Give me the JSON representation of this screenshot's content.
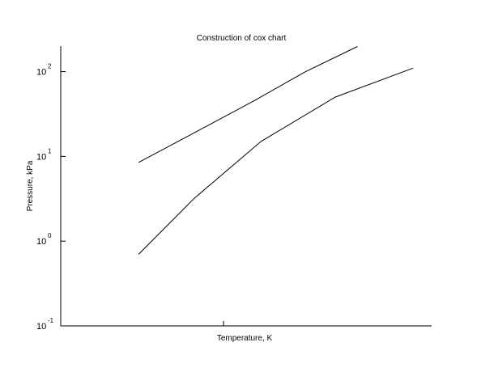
{
  "chart_data": {
    "type": "line",
    "title": "Construction of cox chart",
    "xlabel": "Temperature, K",
    "ylabel": "Pressure, kPa",
    "yscale": "log",
    "ylim": [
      0.1,
      200
    ],
    "xlim": [
      0,
      1
    ],
    "x_ticks": [],
    "y_ticks": [
      {
        "value": 0.1,
        "base": "10",
        "exp": "-1"
      },
      {
        "value": 1,
        "base": "10",
        "exp": "0"
      },
      {
        "value": 10,
        "base": "10",
        "exp": "1"
      },
      {
        "value": 100,
        "base": "10",
        "exp": "2"
      }
    ],
    "grid": false,
    "legend": "none",
    "line_color": "#000000",
    "series": [
      {
        "x": [
          0.21,
          0.36,
          0.52,
          0.66,
          0.8
        ],
        "y": [
          8.5,
          19,
          45,
          100,
          198
        ]
      },
      {
        "x": [
          0.21,
          0.36,
          0.54,
          0.74,
          0.95
        ],
        "y": [
          0.7,
          3.2,
          15,
          50,
          110
        ]
      }
    ]
  }
}
